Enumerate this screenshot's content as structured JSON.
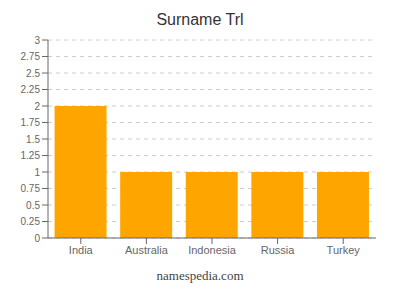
{
  "chart_data": {
    "type": "bar",
    "title": "Surname Trl",
    "categories": [
      "India",
      "Australia",
      "Indonesia",
      "Russia",
      "Turkey"
    ],
    "values": [
      2,
      1,
      1,
      1,
      1
    ],
    "color": "#FFA500",
    "ylim": [
      0,
      3
    ],
    "yticks": [
      0,
      0.25,
      0.5,
      0.75,
      1.0,
      1.25,
      1.5,
      1.75,
      2.0,
      2.25,
      2.5,
      2.75,
      3.0
    ],
    "grid": true,
    "annotations": [
      "namespedia.com"
    ]
  }
}
